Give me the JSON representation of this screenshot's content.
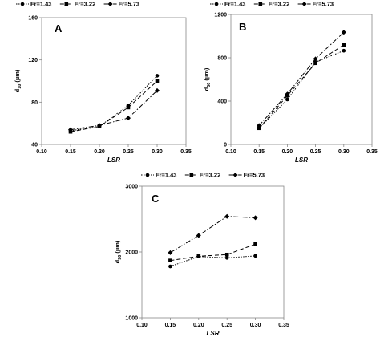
{
  "chart_data": [
    {
      "type": "line",
      "panel_label": "A",
      "xlabel": "LSR",
      "ylabel": "d",
      "ylabel_sub": "10",
      "ylabel_unit": " (µm)",
      "xlim": [
        0.1,
        0.35
      ],
      "ylim": [
        40,
        160
      ],
      "xticks": [
        "0.10",
        "0.15",
        "0.20",
        "0.25",
        "0.30",
        "0.35"
      ],
      "yticks": [
        "40",
        "80",
        "120",
        "160"
      ],
      "x": [
        0.15,
        0.2,
        0.25,
        0.3
      ],
      "series": [
        {
          "name": "Fr=1.43",
          "values": [
            53,
            57,
            77,
            105
          ]
        },
        {
          "name": "Fr=3.22",
          "values": [
            52,
            57,
            75,
            100
          ]
        },
        {
          "name": "Fr=5.73",
          "values": [
            54,
            58,
            65,
            91
          ]
        }
      ]
    },
    {
      "type": "line",
      "panel_label": "B",
      "xlabel": "LSR",
      "ylabel": "d",
      "ylabel_sub": "50",
      "ylabel_unit": " (µm)",
      "xlim": [
        0.1,
        0.35
      ],
      "ylim": [
        0,
        1200
      ],
      "xticks": [
        "0.10",
        "0.15",
        "0.20",
        "0.25",
        "0.30",
        "0.35"
      ],
      "yticks": [
        "0",
        "400",
        "800",
        "1200"
      ],
      "x": [
        0.15,
        0.2,
        0.25,
        0.3
      ],
      "series": [
        {
          "name": "Fr=1.43",
          "values": [
            150,
            415,
            760,
            865
          ]
        },
        {
          "name": "Fr=3.22",
          "values": [
            150,
            450,
            750,
            920
          ]
        },
        {
          "name": "Fr=5.73",
          "values": [
            175,
            465,
            790,
            1035
          ]
        }
      ]
    },
    {
      "type": "line",
      "panel_label": "C",
      "xlabel": "LSR",
      "ylabel": "d",
      "ylabel_sub": "90",
      "ylabel_unit": " (µm)",
      "xlim": [
        0.1,
        0.35
      ],
      "ylim": [
        1000,
        3000
      ],
      "xticks": [
        "0.10",
        "0.15",
        "0.20",
        "0.25",
        "0.30",
        "0.35"
      ],
      "yticks": [
        "1000",
        "2000",
        "3000"
      ],
      "x": [
        0.15,
        0.2,
        0.25,
        0.3
      ],
      "series": [
        {
          "name": "Fr=1.43",
          "values": [
            1780,
            1930,
            1910,
            1940
          ]
        },
        {
          "name": "Fr=3.22",
          "values": [
            1870,
            1935,
            1960,
            2120
          ]
        },
        {
          "name": "Fr=5.73",
          "values": [
            1990,
            2250,
            2540,
            2520
          ]
        }
      ]
    }
  ],
  "legend": [
    {
      "label": "Fr=1.43",
      "marker": "circle",
      "dash": "1.5,1.5"
    },
    {
      "label": "Fr=3.22",
      "marker": "square",
      "dash": "5,3"
    },
    {
      "label": "Fr=5.73",
      "marker": "diamond",
      "dash": "6,2,1.5,2"
    }
  ]
}
